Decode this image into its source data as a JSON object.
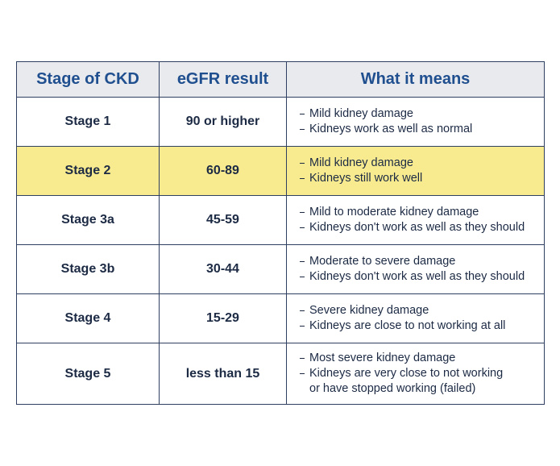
{
  "table": {
    "header": [
      "Stage of CKD",
      "eGFR result",
      "What it means"
    ],
    "rows": [
      {
        "stage": "Stage 1",
        "egfr": "90 or higher",
        "meaning": [
          [
            "Mild kidney damage"
          ],
          [
            "Kidneys work as well as normal"
          ]
        ]
      },
      {
        "stage": "Stage 2",
        "egfr": "60-89",
        "meaning": [
          [
            "Mild kidney damage"
          ],
          [
            "Kidneys still work well"
          ]
        ]
      },
      {
        "stage": "Stage 3a",
        "egfr": "45-59",
        "meaning": [
          [
            "Mild to moderate kidney damage"
          ],
          [
            "Kidneys don't work as well as they should"
          ]
        ]
      },
      {
        "stage": "Stage 3b",
        "egfr": "30-44",
        "meaning": [
          [
            "Moderate to severe damage"
          ],
          [
            "Kidneys don't work as well as they should"
          ]
        ]
      },
      {
        "stage": "Stage 4",
        "egfr": "15-29",
        "meaning": [
          [
            "Severe kidney damage"
          ],
          [
            "Kidneys are close to not working at all"
          ]
        ]
      },
      {
        "stage": "Stage 5",
        "egfr": "less than 15",
        "meaning": [
          [
            "Most severe kidney damage"
          ],
          [
            "Kidneys are very close to not working",
            "or have stopped working (failed)"
          ]
        ]
      }
    ],
    "highlight_row": 1,
    "highlight_color": "#f8eb8f"
  }
}
